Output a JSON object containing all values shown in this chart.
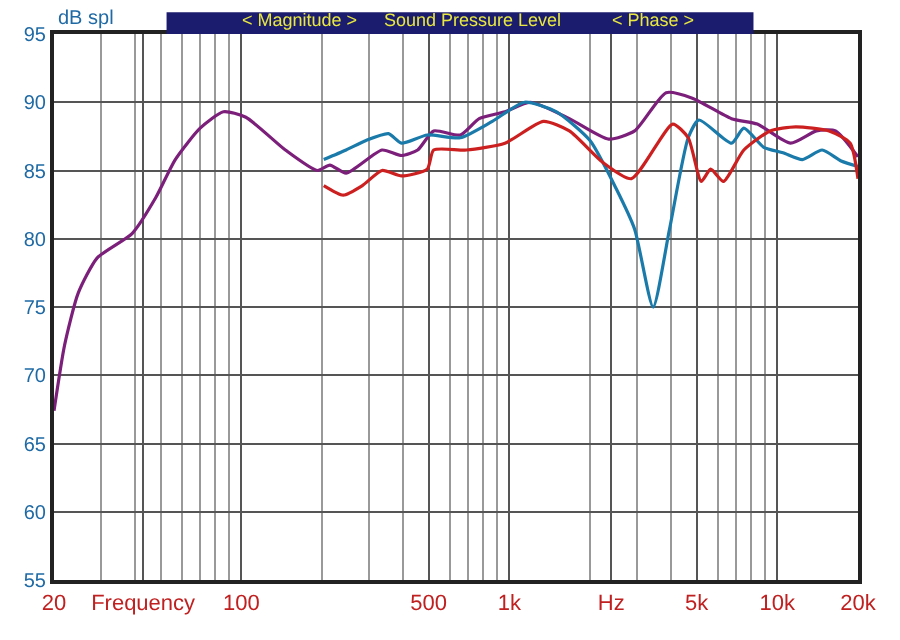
{
  "chart_data": {
    "type": "line",
    "title": "Sound Pressure Level",
    "ylabel": "dB spl",
    "annotations": [
      "< Magnitude >",
      "< Phase >"
    ],
    "log": "x",
    "grid": true,
    "marker": "none",
    "line_style": "solid",
    "xlim": [
      20,
      20000
    ],
    "ylim": [
      55,
      95
    ],
    "xticks": [
      20,
      {
        "value": 43,
        "label": "Frequency"
      },
      100,
      500,
      {
        "value": 1000,
        "label": "1k"
      },
      {
        "value": 2400,
        "label": "Hz"
      },
      {
        "value": 5000,
        "label": "5k"
      },
      {
        "value": 10000,
        "label": "10k"
      },
      {
        "value": 20000,
        "label": "20k"
      }
    ],
    "yticks": [
      55,
      60,
      65,
      70,
      75,
      80,
      85,
      90,
      95
    ],
    "series": [
      {
        "color": "#7b1f7a",
        "x": [
          20,
          21.9,
          24.6,
          29,
          39.2,
          47.9,
          56.7,
          70.2,
          85.8,
          104,
          146,
          192,
          214,
          246,
          335,
          396,
          455,
          522,
          656,
          772,
          963,
          1198,
          1675,
          2346,
          2935,
          3847,
          4818,
          6745,
          8420,
          11200,
          13990,
          16500,
          20000
        ],
        "values": [
          67.4,
          72.2,
          76.0,
          78.6,
          80.4,
          83.0,
          85.8,
          88.1,
          89.3,
          88.9,
          86.5,
          85.0,
          85.4,
          84.8,
          86.5,
          86.1,
          86.5,
          87.9,
          87.6,
          88.8,
          89.3,
          90.0,
          88.8,
          87.3,
          87.9,
          90.7,
          90.3,
          88.8,
          88.4,
          87.0,
          87.9,
          87.9,
          86.0
        ]
      },
      {
        "color": "#1a7aaa",
        "x": [
          203,
          246,
          292,
          354,
          396,
          494,
          656,
          864,
          1140,
          1500,
          2000,
          2500,
          2935,
          3440,
          3960,
          4650,
          5100,
          6745,
          7500,
          8900,
          10500,
          12400,
          14700,
          17300,
          20000
        ],
        "values": [
          85.8,
          86.5,
          87.2,
          87.7,
          87.0,
          87.6,
          87.4,
          88.6,
          90.0,
          89.3,
          87.2,
          83.7,
          80.7,
          75.0,
          80.7,
          87.4,
          88.7,
          87.0,
          88.1,
          86.7,
          86.3,
          85.8,
          86.5,
          85.7,
          85.3
        ]
      },
      {
        "color": "#cc2020",
        "x": [
          203,
          240,
          283,
          335,
          396,
          494,
          522,
          692,
          963,
          1340,
          1675,
          2230,
          2855,
          4070,
          4650,
          5200,
          5640,
          6300,
          7500,
          9400,
          11700,
          15600,
          18700,
          20000
        ],
        "values": [
          83.9,
          83.2,
          83.9,
          85.0,
          84.6,
          85.1,
          86.5,
          86.5,
          87.0,
          88.6,
          87.9,
          85.6,
          84.4,
          88.4,
          87.4,
          84.2,
          85.1,
          84.2,
          86.5,
          87.9,
          88.2,
          87.9,
          87.0,
          84.4
        ]
      }
    ]
  }
}
